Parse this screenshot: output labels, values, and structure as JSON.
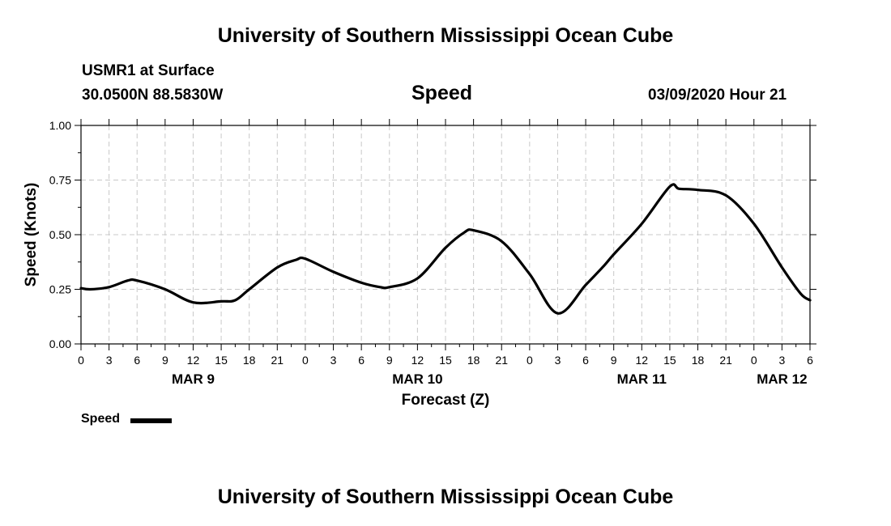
{
  "header": {
    "title_top": "University of Southern Mississippi Ocean Cube",
    "station": "USMR1 at Surface",
    "coords": "30.0500N 88.5830W",
    "chart_title": "Speed",
    "datetime": "03/09/2020 Hour 21"
  },
  "footer": {
    "title_bottom": "University of Southern Mississippi Ocean Cube"
  },
  "legend": {
    "label": "Speed"
  },
  "chart_data": {
    "type": "line",
    "title": "Speed",
    "xlabel": "Forecast (Z)",
    "ylabel": "Speed (Knots)",
    "xlim": [
      0,
      78
    ],
    "ylim": [
      0,
      1
    ],
    "grid": true,
    "yticks": [
      0,
      0.25,
      0.5,
      0.75,
      1.0
    ],
    "ytick_labels": [
      "0.00",
      "0.25",
      "0.50",
      "0.75",
      "1.00"
    ],
    "xticks": [
      0,
      3,
      6,
      9,
      12,
      15,
      18,
      21,
      24,
      27,
      30,
      33,
      36,
      39,
      42,
      45,
      48,
      51,
      54,
      57,
      60,
      63,
      66,
      69,
      72,
      75,
      78
    ],
    "xtick_labels": [
      "0",
      "3",
      "6",
      "9",
      "12",
      "15",
      "18",
      "21",
      "0",
      "3",
      "6",
      "9",
      "12",
      "15",
      "18",
      "21",
      "0",
      "3",
      "6",
      "9",
      "12",
      "15",
      "18",
      "21",
      "0",
      "3",
      "6"
    ],
    "date_labels": [
      {
        "label": "MAR 9",
        "x": 12
      },
      {
        "label": "MAR 10",
        "x": 36
      },
      {
        "label": "MAR 11",
        "x": 60
      },
      {
        "label": "MAR 12",
        "x": 75
      }
    ],
    "series": [
      {
        "name": "Speed",
        "x": [
          0,
          1,
          3,
          5,
          6,
          9,
          12,
          15,
          16.5,
          18,
          21,
          23,
          24,
          27,
          30,
          32,
          33,
          36,
          39,
          41,
          42,
          45,
          48,
          51,
          54,
          56,
          57,
          60,
          63,
          64,
          66,
          69,
          72,
          75,
          77,
          78
        ],
        "values": [
          0.255,
          0.25,
          0.26,
          0.29,
          0.29,
          0.25,
          0.19,
          0.195,
          0.2,
          0.25,
          0.35,
          0.385,
          0.39,
          0.33,
          0.28,
          0.26,
          0.26,
          0.3,
          0.44,
          0.51,
          0.52,
          0.47,
          0.32,
          0.14,
          0.27,
          0.36,
          0.41,
          0.55,
          0.72,
          0.71,
          0.705,
          0.68,
          0.55,
          0.35,
          0.23,
          0.2
        ]
      }
    ]
  }
}
